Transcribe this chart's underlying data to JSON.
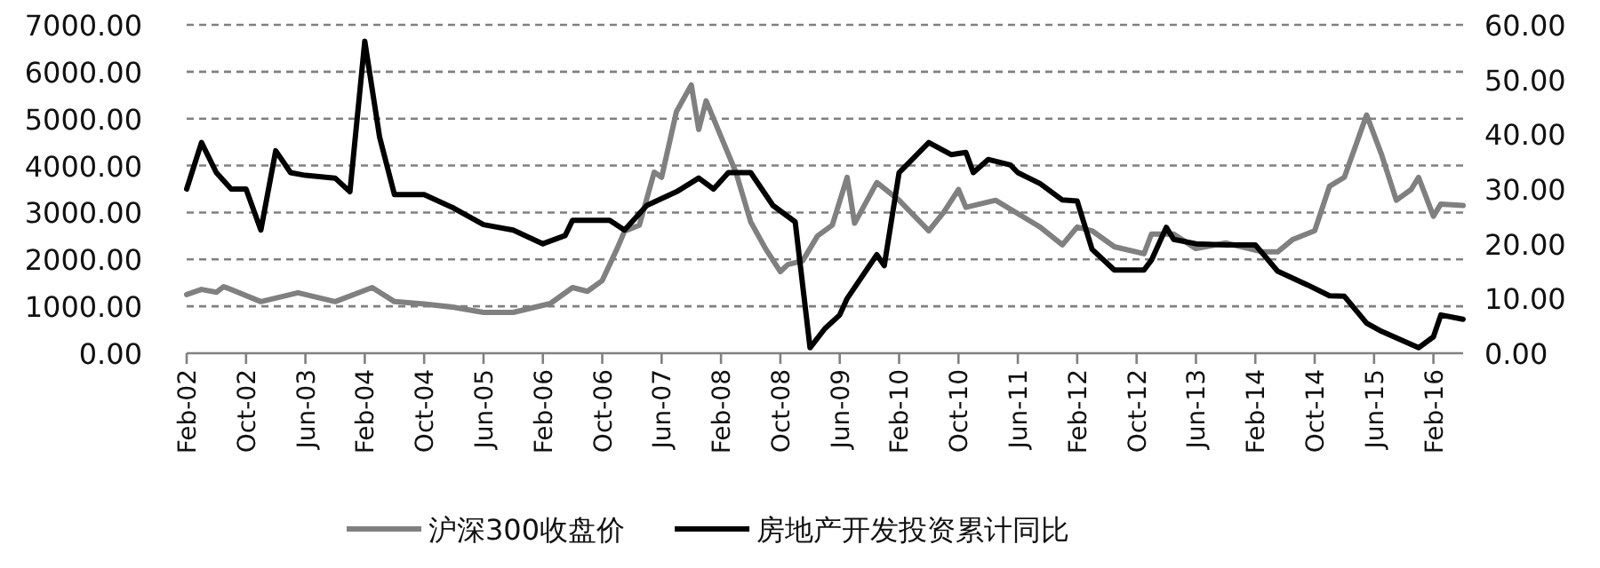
{
  "chart_data": {
    "type": "line",
    "xlim": [
      "2002-02",
      "2016-06"
    ],
    "xticks": [
      {
        "value": "2002-02",
        "label": "Feb-02"
      },
      {
        "value": "2002-10",
        "label": "Oct-02"
      },
      {
        "value": "2003-06",
        "label": "Jun-03"
      },
      {
        "value": "2004-02",
        "label": "Feb-04"
      },
      {
        "value": "2004-10",
        "label": "Oct-04"
      },
      {
        "value": "2005-06",
        "label": "Jun-05"
      },
      {
        "value": "2006-02",
        "label": "Feb-06"
      },
      {
        "value": "2006-10",
        "label": "Oct-06"
      },
      {
        "value": "2007-06",
        "label": "Jun-07"
      },
      {
        "value": "2008-02",
        "label": "Feb-08"
      },
      {
        "value": "2008-10",
        "label": "Oct-08"
      },
      {
        "value": "2009-06",
        "label": "Jun-09"
      },
      {
        "value": "2010-02",
        "label": "Feb-10"
      },
      {
        "value": "2010-10",
        "label": "Oct-10"
      },
      {
        "value": "2011-06",
        "label": "Jun-11"
      },
      {
        "value": "2012-02",
        "label": "Feb-12"
      },
      {
        "value": "2012-10",
        "label": "Oct-12"
      },
      {
        "value": "2013-06",
        "label": "Jun-13"
      },
      {
        "value": "2014-02",
        "label": "Feb-14"
      },
      {
        "value": "2014-10",
        "label": "Oct-14"
      },
      {
        "value": "2015-06",
        "label": "Jun-15"
      },
      {
        "value": "2016-02",
        "label": "Feb-16"
      }
    ],
    "ylim": [
      0,
      7000
    ],
    "yticks": [
      {
        "value": 0,
        "label": "0.00"
      },
      {
        "value": 1000,
        "label": "1000.00"
      },
      {
        "value": 2000,
        "label": "2000.00"
      },
      {
        "value": 3000,
        "label": "3000.00"
      },
      {
        "value": 4000,
        "label": "4000.00"
      },
      {
        "value": 5000,
        "label": "5000.00"
      },
      {
        "value": 6000,
        "label": "6000.00"
      },
      {
        "value": 7000,
        "label": "7000.00"
      }
    ],
    "y2lim": [
      0,
      60
    ],
    "y2ticks": [
      {
        "value": 0,
        "label": "0.00"
      },
      {
        "value": 10,
        "label": "10.00"
      },
      {
        "value": 20,
        "label": "20.00"
      },
      {
        "value": 30,
        "label": "30.00"
      },
      {
        "value": 40,
        "label": "40.00"
      },
      {
        "value": 50,
        "label": "50.00"
      },
      {
        "value": 60,
        "label": "60.00"
      }
    ],
    "grid": "y",
    "legend": "bottom",
    "line_style": "solid",
    "marker": "none",
    "series": [
      {
        "name": "沪深300收盘价",
        "color": "#808080",
        "x": [
          "2002-02",
          "2002-04",
          "2002-06",
          "2002-07",
          "2002-12",
          "2003-05",
          "2003-10",
          "2004-03",
          "2004-06",
          "2004-10",
          "2005-02",
          "2005-06",
          "2005-10",
          "2006-03",
          "2006-06",
          "2006-08",
          "2006-10",
          "2006-12",
          "2007-01",
          "2007-03",
          "2007-05",
          "2007-06",
          "2007-08",
          "2007-10",
          "2007-11",
          "2007-12",
          "2008-02",
          "2008-04",
          "2008-06",
          "2008-08",
          "2008-10",
          "2008-11",
          "2009-01",
          "2009-03",
          "2009-05",
          "2009-07",
          "2009-08",
          "2009-11",
          "2010-02",
          "2010-06",
          "2010-08",
          "2010-10",
          "2010-11",
          "2011-03",
          "2011-07",
          "2011-09",
          "2011-12",
          "2012-02",
          "2012-04",
          "2012-07",
          "2012-11",
          "2012-12",
          "2013-03",
          "2013-06",
          "2013-10",
          "2014-03",
          "2014-05",
          "2014-07",
          "2014-10",
          "2014-12",
          "2015-02",
          "2015-05",
          "2015-07",
          "2015-09",
          "2015-11",
          "2015-12",
          "2016-02",
          "2016-03",
          "2016-06"
        ],
        "values": [
          1250,
          1360,
          1300,
          1420,
          1100,
          1290,
          1100,
          1400,
          1100,
          1050,
          980,
          870,
          870,
          1060,
          1400,
          1320,
          1550,
          2230,
          2600,
          2730,
          3860,
          3750,
          5150,
          5720,
          4770,
          5380,
          4620,
          3860,
          2800,
          2230,
          1740,
          1890,
          1970,
          2500,
          2730,
          3750,
          2770,
          3640,
          3260,
          2610,
          3000,
          3490,
          3110,
          3260,
          2880,
          2690,
          2310,
          2690,
          2610,
          2270,
          2120,
          2540,
          2540,
          2230,
          2350,
          2160,
          2160,
          2420,
          2610,
          3560,
          3750,
          5080,
          4240,
          3260,
          3490,
          3750,
          2920,
          3180,
          3150
        ]
      },
      {
        "name": "房地产开发投资累计同比",
        "color": "#000000",
        "axis": "y2",
        "x": [
          "2002-02",
          "2002-04",
          "2002-06",
          "2002-08",
          "2002-10",
          "2002-12",
          "2003-02",
          "2003-04",
          "2003-06",
          "2003-10",
          "2003-12",
          "2004-02",
          "2004-04",
          "2004-06",
          "2004-10",
          "2005-02",
          "2005-06",
          "2005-10",
          "2006-02",
          "2006-05",
          "2006-06",
          "2006-11",
          "2007-01",
          "2007-04",
          "2007-08",
          "2007-11",
          "2008-01",
          "2008-03",
          "2008-06",
          "2008-09",
          "2008-12",
          "2009-02",
          "2009-04",
          "2009-06",
          "2009-07",
          "2009-11",
          "2009-12",
          "2010-02",
          "2010-06",
          "2010-09",
          "2010-11",
          "2010-12",
          "2011-02",
          "2011-05",
          "2011-06",
          "2011-09",
          "2011-12",
          "2012-02",
          "2012-04",
          "2012-07",
          "2012-11",
          "2012-12",
          "2013-02",
          "2013-03",
          "2013-06",
          "2013-10",
          "2014-02",
          "2014-05",
          "2014-09",
          "2014-12",
          "2015-02",
          "2015-05",
          "2015-07",
          "2015-12",
          "2016-02",
          "2016-03",
          "2016-06"
        ],
        "values": [
          30,
          38.5,
          33,
          30,
          30,
          22.5,
          37,
          33,
          32.5,
          32,
          29.5,
          57,
          39.5,
          29,
          29,
          26.5,
          23.5,
          22.5,
          20,
          21.5,
          24.3,
          24.3,
          22.5,
          27,
          29.5,
          32,
          30,
          33,
          33,
          27,
          24,
          1,
          4.5,
          7,
          10,
          18,
          16,
          33,
          38.5,
          36.3,
          36.7,
          33,
          35.4,
          34.4,
          33,
          31,
          28,
          27.8,
          19,
          15.2,
          15.2,
          17,
          23,
          20.8,
          20,
          19.8,
          19.8,
          15,
          12.5,
          10.5,
          10.4,
          5.5,
          4,
          1,
          3,
          7,
          6.2
        ]
      }
    ]
  }
}
